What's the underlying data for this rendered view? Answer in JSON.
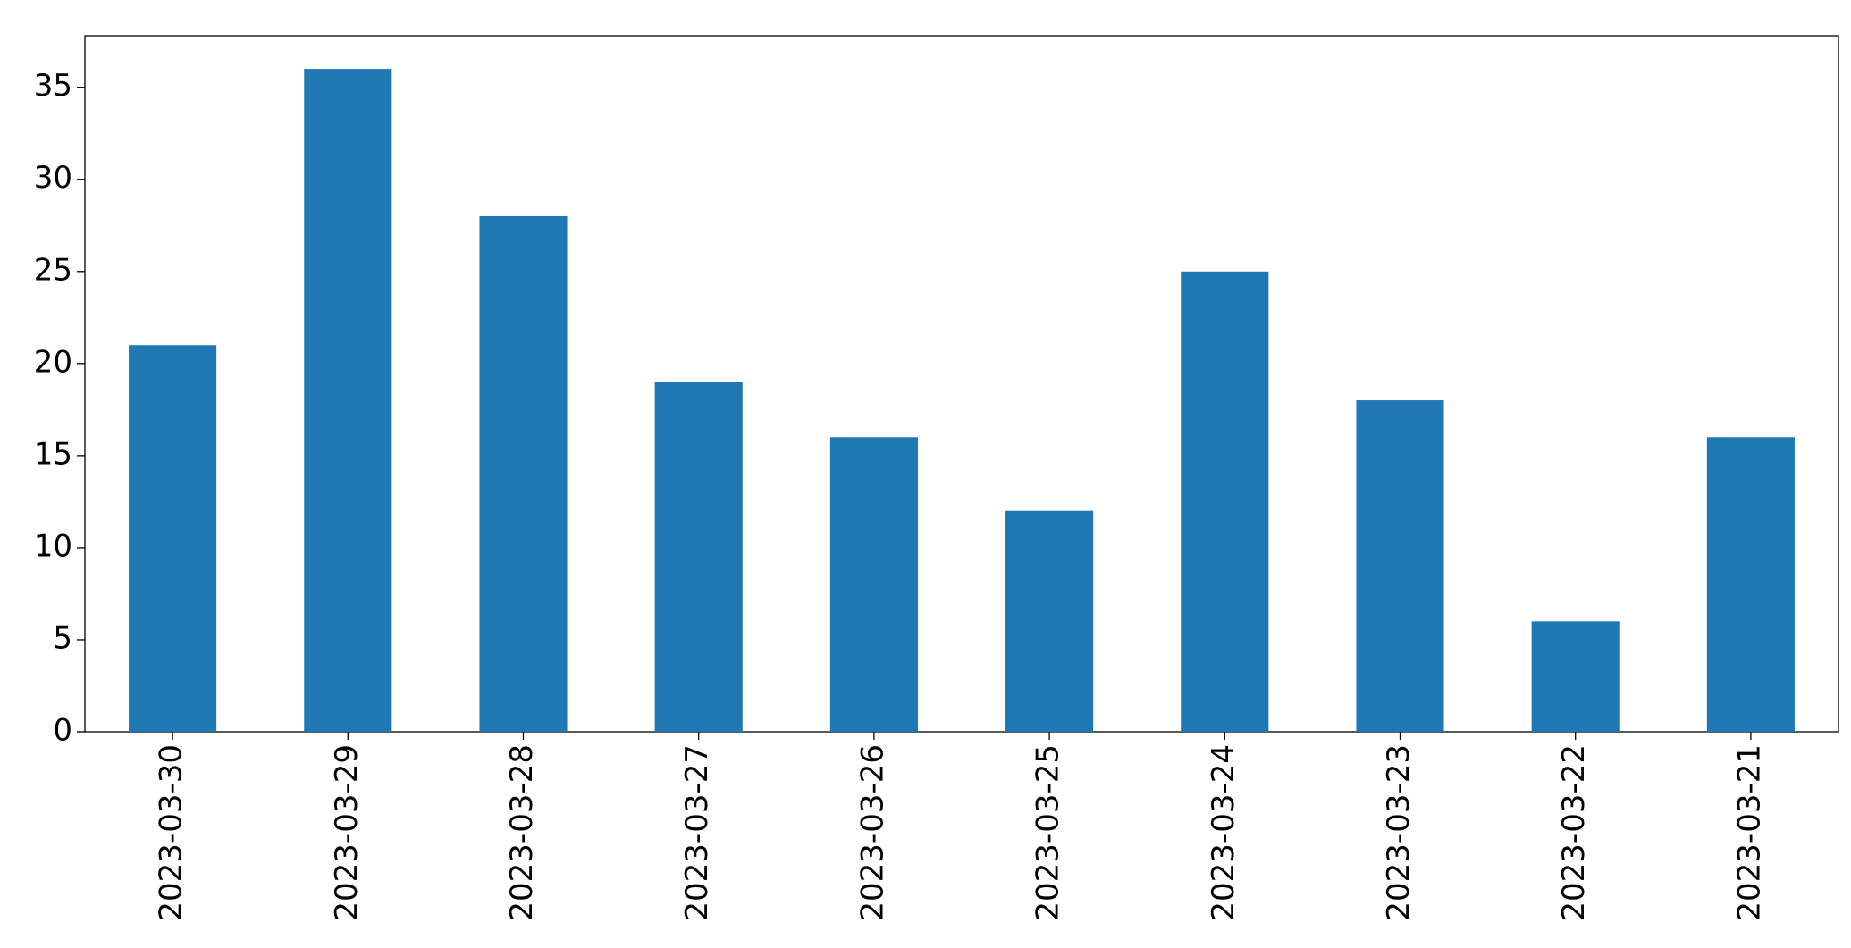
{
  "chart_data": {
    "type": "bar",
    "categories": [
      "2023-03-30",
      "2023-03-29",
      "2023-03-28",
      "2023-03-27",
      "2023-03-26",
      "2023-03-25",
      "2023-03-24",
      "2023-03-23",
      "2023-03-22",
      "2023-03-21"
    ],
    "values": [
      21,
      36,
      28,
      19,
      16,
      12,
      25,
      18,
      6,
      16
    ],
    "color": "#1f77b4",
    "ylim": [
      0,
      37.8
    ],
    "yticks": [
      0,
      5,
      10,
      15,
      20,
      25,
      30,
      35
    ],
    "grid": false
  }
}
